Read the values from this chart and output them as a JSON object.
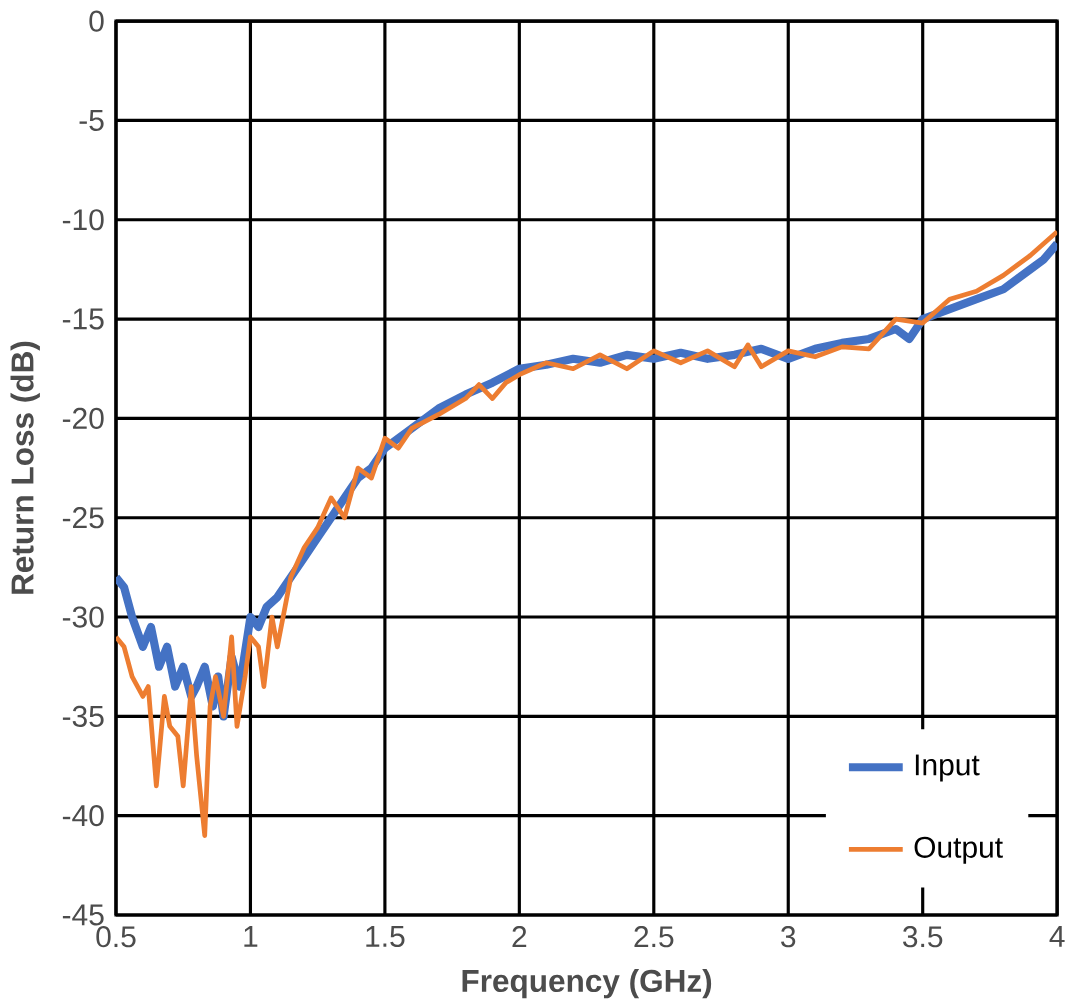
{
  "chart_data": {
    "type": "line",
    "xlabel": "Frequency (GHz)",
    "ylabel": "Return Loss (dB)",
    "xlim": [
      0.5,
      4
    ],
    "ylim": [
      -45,
      0
    ],
    "xticks": [
      0.5,
      1,
      1.5,
      2,
      2.5,
      3,
      3.5,
      4
    ],
    "yticks": [
      -45,
      -40,
      -35,
      -30,
      -25,
      -20,
      -15,
      -10,
      -5,
      0
    ],
    "grid": true,
    "legend": "bottom right",
    "marker": "none",
    "line_style": "solid",
    "series": [
      {
        "name": "Input",
        "color": "#4472c4",
        "x": [
          0.5,
          0.53,
          0.56,
          0.6,
          0.63,
          0.66,
          0.69,
          0.72,
          0.75,
          0.78,
          0.8,
          0.83,
          0.86,
          0.88,
          0.9,
          0.93,
          0.96,
          1.0,
          1.03,
          1.06,
          1.1,
          1.15,
          1.2,
          1.25,
          1.3,
          1.35,
          1.4,
          1.45,
          1.5,
          1.6,
          1.7,
          1.8,
          1.9,
          2.0,
          2.1,
          2.2,
          2.3,
          2.4,
          2.5,
          2.6,
          2.7,
          2.8,
          2.9,
          3.0,
          3.1,
          3.2,
          3.3,
          3.4,
          3.45,
          3.5,
          3.6,
          3.7,
          3.8,
          3.9,
          3.95,
          4.0
        ],
        "values": [
          -28,
          -28.5,
          -30,
          -31.5,
          -30.5,
          -32.5,
          -31.5,
          -33.5,
          -32.5,
          -34,
          -33.5,
          -32.5,
          -34.5,
          -33,
          -35,
          -32,
          -33.5,
          -30,
          -30.5,
          -29.5,
          -29,
          -28,
          -27,
          -26,
          -25,
          -24,
          -23,
          -22.5,
          -21.5,
          -20.5,
          -19.5,
          -18.8,
          -18.2,
          -17.5,
          -17.3,
          -17,
          -17.2,
          -16.8,
          -17,
          -16.7,
          -17,
          -16.8,
          -16.5,
          -17,
          -16.5,
          -16.2,
          -16,
          -15.5,
          -16,
          -15,
          -14.5,
          -14,
          -13.5,
          -12.5,
          -12,
          -11.2
        ]
      },
      {
        "name": "Output",
        "color": "#ed7d31",
        "x": [
          0.5,
          0.53,
          0.56,
          0.6,
          0.62,
          0.65,
          0.68,
          0.7,
          0.73,
          0.75,
          0.78,
          0.8,
          0.83,
          0.85,
          0.87,
          0.9,
          0.93,
          0.95,
          0.98,
          1.0,
          1.03,
          1.05,
          1.08,
          1.1,
          1.15,
          1.2,
          1.25,
          1.3,
          1.35,
          1.4,
          1.45,
          1.5,
          1.55,
          1.6,
          1.7,
          1.8,
          1.85,
          1.9,
          1.95,
          2.0,
          2.1,
          2.2,
          2.3,
          2.4,
          2.5,
          2.6,
          2.7,
          2.8,
          2.85,
          2.9,
          3.0,
          3.1,
          3.2,
          3.3,
          3.4,
          3.5,
          3.6,
          3.7,
          3.8,
          3.9,
          4.0
        ],
        "values": [
          -31,
          -31.5,
          -33,
          -34,
          -33.5,
          -38.5,
          -34,
          -35.5,
          -36,
          -38.5,
          -33.5,
          -37,
          -41,
          -34.5,
          -33,
          -35,
          -31,
          -35.5,
          -33,
          -31,
          -31.5,
          -33.5,
          -30,
          -31.5,
          -28,
          -26.5,
          -25.5,
          -24,
          -25,
          -22.5,
          -23,
          -21,
          -21.5,
          -20.5,
          -19.8,
          -19,
          -18.3,
          -19,
          -18.2,
          -17.8,
          -17.2,
          -17.5,
          -16.8,
          -17.5,
          -16.6,
          -17.2,
          -16.6,
          -17.4,
          -16.3,
          -17.4,
          -16.6,
          -16.9,
          -16.4,
          -16.5,
          -15,
          -15.2,
          -14,
          -13.6,
          -12.8,
          -11.8,
          -10.6
        ]
      }
    ]
  }
}
